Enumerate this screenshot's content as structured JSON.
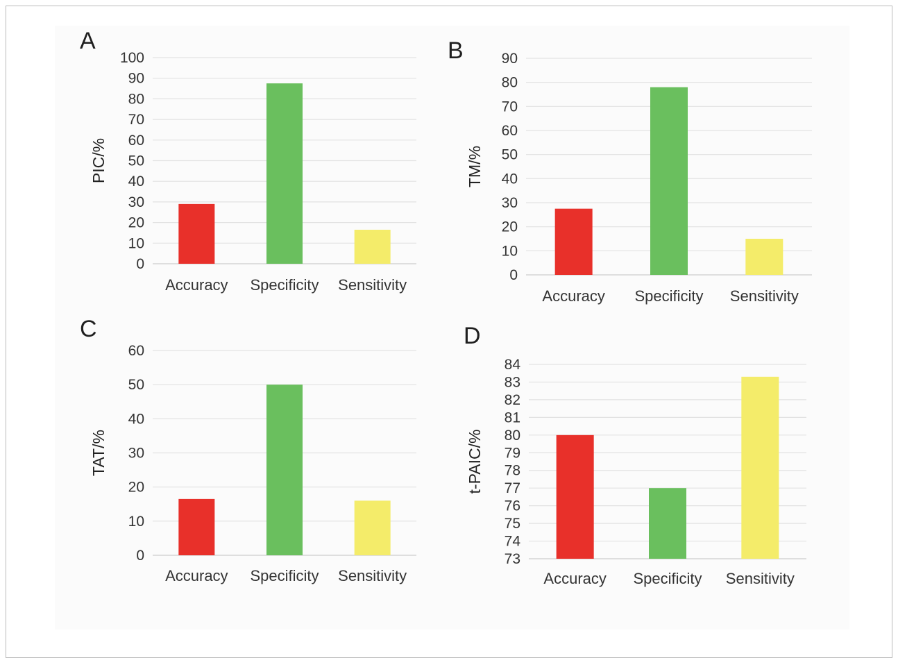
{
  "chart_data": [
    {
      "type": "bar",
      "panel": "A",
      "categories": [
        "Accuracy",
        "Specificity",
        "Sensitivity"
      ],
      "values": [
        29,
        87.5,
        16.5
      ],
      "colors": [
        "#e8302a",
        "#6abf5e",
        "#f4ec6a"
      ],
      "ylabel": "PIC/%",
      "ylim": [
        0,
        100
      ],
      "yticks": [
        0,
        10,
        20,
        30,
        40,
        50,
        60,
        70,
        80,
        90,
        100
      ],
      "grid": true
    },
    {
      "type": "bar",
      "panel": "B",
      "categories": [
        "Accuracy",
        "Specificity",
        "Sensitivity"
      ],
      "values": [
        27.5,
        78,
        15
      ],
      "colors": [
        "#e8302a",
        "#6abf5e",
        "#f4ec6a"
      ],
      "ylabel": "TM/%",
      "ylim": [
        0,
        90
      ],
      "yticks": [
        0,
        10,
        20,
        30,
        40,
        50,
        60,
        70,
        80,
        90
      ],
      "grid": true
    },
    {
      "type": "bar",
      "panel": "C",
      "categories": [
        "Accuracy",
        "Specificity",
        "Sensitivity"
      ],
      "values": [
        16.5,
        50,
        16
      ],
      "colors": [
        "#e8302a",
        "#6abf5e",
        "#f4ec6a"
      ],
      "ylabel": "TAT/%",
      "ylim": [
        0,
        60
      ],
      "yticks": [
        0,
        10,
        20,
        30,
        40,
        50,
        60
      ],
      "grid": true
    },
    {
      "type": "bar",
      "panel": "D",
      "categories": [
        "Accuracy",
        "Specificity",
        "Sensitivity"
      ],
      "values": [
        80,
        77,
        83.3
      ],
      "colors": [
        "#e8302a",
        "#6abf5e",
        "#f4ec6a"
      ],
      "ylabel": "t-PAIC/%",
      "ylim": [
        73,
        84
      ],
      "yticks": [
        73,
        74,
        75,
        76,
        77,
        78,
        79,
        80,
        81,
        82,
        83,
        84
      ],
      "grid": true
    }
  ]
}
